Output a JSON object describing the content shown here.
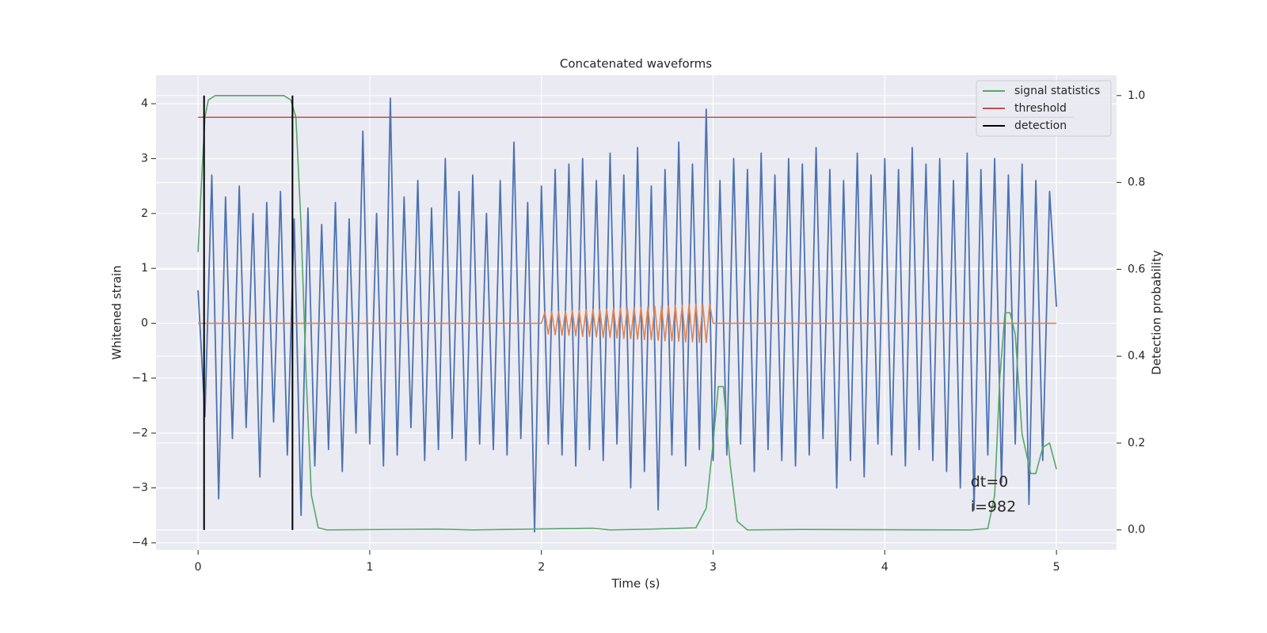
{
  "chart_data": {
    "type": "line",
    "title": "Concatenated waveforms",
    "x_label": "Time (s)",
    "y_label": "Whitened strain",
    "y2_label": "Detection probability",
    "xlim": [
      -0.245,
      5.35
    ],
    "ylim": [
      -4.13,
      4.52
    ],
    "y2lim": [
      -0.046,
      1.047
    ],
    "xticks": [
      0,
      1,
      2,
      3,
      4,
      5
    ],
    "yticks": [
      {
        "value": -4,
        "label": "−4"
      },
      {
        "value": -3,
        "label": "−3"
      },
      {
        "value": -2,
        "label": "−2"
      },
      {
        "value": -1,
        "label": "−1"
      },
      0,
      1,
      2,
      3,
      4
    ],
    "y2ticks": [
      {
        "value": 0,
        "label": "0.0"
      },
      {
        "value": 0.2,
        "label": "0.2"
      },
      {
        "value": 0.4,
        "label": "0.4"
      },
      {
        "value": 0.6,
        "label": "0.6"
      },
      {
        "value": 0.8,
        "label": "0.8"
      },
      {
        "value": 1,
        "label": "1.0"
      }
    ],
    "grid": true,
    "legend": "upper right",
    "annotations": [
      {
        "text": "dt=0",
        "x": 4.5,
        "y": -2.9
      },
      {
        "text": "i=982",
        "x": 4.5,
        "y": -3.35
      }
    ],
    "series": [
      {
        "color": "#4c72b0",
        "x": [
          0,
          0.04,
          0.08,
          0.12,
          0.16,
          0.2,
          0.24,
          0.28,
          0.32,
          0.36,
          0.4,
          0.44,
          0.48,
          0.52,
          0.56,
          0.6,
          0.64,
          0.68,
          0.72,
          0.76,
          0.8,
          0.84,
          0.88,
          0.92,
          0.96,
          1,
          1.04,
          1.08,
          1.12,
          1.16,
          1.2,
          1.24,
          1.28,
          1.32,
          1.36,
          1.4,
          1.44,
          1.48,
          1.52,
          1.56,
          1.6,
          1.64,
          1.68,
          1.72,
          1.76,
          1.8,
          1.84,
          1.88,
          1.92,
          1.96,
          2,
          2.04,
          2.08,
          2.12,
          2.16,
          2.2,
          2.24,
          2.28,
          2.32,
          2.36,
          2.4,
          2.44,
          2.48,
          2.52,
          2.56,
          2.6,
          2.64,
          2.68,
          2.72,
          2.76,
          2.8,
          2.84,
          2.88,
          2.92,
          2.96,
          3,
          3.04,
          3.08,
          3.12,
          3.16,
          3.2,
          3.24,
          3.28,
          3.32,
          3.36,
          3.4,
          3.44,
          3.48,
          3.52,
          3.56,
          3.6,
          3.64,
          3.68,
          3.72,
          3.76,
          3.8,
          3.84,
          3.88,
          3.92,
          3.96,
          4,
          4.04,
          4.08,
          4.12,
          4.16,
          4.2,
          4.24,
          4.28,
          4.32,
          4.36,
          4.4,
          4.44,
          4.48,
          4.52,
          4.56,
          4.6,
          4.64,
          4.68,
          4.72,
          4.76,
          4.8,
          4.84,
          4.88,
          4.92,
          4.96,
          5
        ],
        "values": [
          0.6,
          -1.7,
          2.7,
          -3.2,
          2.3,
          -2.1,
          2.5,
          -1.9,
          2.0,
          -2.8,
          2.2,
          -1.8,
          2.4,
          -2.4,
          1.9,
          -3.5,
          2.1,
          -2.6,
          1.8,
          -2.3,
          2.2,
          -2.7,
          1.9,
          -2.0,
          3.5,
          -2.2,
          2.0,
          -2.6,
          4.1,
          -2.4,
          2.3,
          -1.9,
          2.6,
          -2.5,
          2.1,
          -2.3,
          3.0,
          -2.1,
          2.4,
          -2.5,
          2.7,
          -2.2,
          2.0,
          -2.3,
          2.6,
          -2.4,
          3.3,
          -2.1,
          2.2,
          -3.8,
          2.5,
          -2.2,
          2.8,
          -2.4,
          2.9,
          -2.6,
          3.0,
          -2.3,
          2.6,
          -2.5,
          3.1,
          -2.2,
          2.7,
          -3.0,
          3.2,
          -2.7,
          2.5,
          -3.4,
          2.8,
          -2.4,
          3.3,
          -2.6,
          2.9,
          -2.3,
          3.9,
          -2.5,
          2.6,
          -2.4,
          3.0,
          -2.2,
          2.8,
          -2.7,
          3.1,
          -2.3,
          2.7,
          -2.5,
          3.0,
          -2.6,
          2.9,
          -2.4,
          3.2,
          -2.1,
          2.8,
          -3.0,
          2.6,
          -2.5,
          3.1,
          -2.8,
          2.7,
          -2.2,
          3.0,
          -2.4,
          2.8,
          -2.6,
          3.2,
          -2.3,
          2.9,
          -2.5,
          3.0,
          -2.7,
          2.6,
          -3.0,
          3.1,
          -3.4,
          2.8,
          -2.4,
          3.0,
          -2.9,
          2.7,
          -2.2,
          2.9,
          -3.3,
          2.6,
          -2.5,
          2.4,
          0.3
        ]
      },
      {
        "color": "#dd8452",
        "x": [
          0,
          2,
          2.02,
          2.04,
          2.06,
          2.08,
          2.1,
          2.12,
          2.14,
          2.16,
          2.18,
          2.2,
          2.22,
          2.24,
          2.26,
          2.28,
          2.3,
          2.32,
          2.34,
          2.36,
          2.38,
          2.4,
          2.42,
          2.44,
          2.46,
          2.48,
          2.5,
          2.52,
          2.54,
          2.56,
          2.58,
          2.6,
          2.62,
          2.64,
          2.66,
          2.68,
          2.7,
          2.72,
          2.74,
          2.76,
          2.78,
          2.8,
          2.82,
          2.84,
          2.86,
          2.88,
          2.9,
          2.92,
          2.94,
          2.96,
          2.98,
          3,
          5
        ],
        "values": [
          0,
          0,
          0.2,
          -0.2,
          0.21,
          -0.21,
          0.21,
          -0.22,
          0.22,
          -0.22,
          0.23,
          -0.23,
          0.23,
          -0.24,
          0.24,
          -0.24,
          0.25,
          -0.25,
          0.25,
          -0.26,
          0.26,
          -0.26,
          0.27,
          -0.27,
          0.27,
          -0.28,
          0.28,
          -0.28,
          0.29,
          -0.29,
          0.29,
          -0.3,
          0.3,
          -0.3,
          0.31,
          -0.31,
          0.31,
          -0.32,
          0.32,
          -0.32,
          0.33,
          -0.33,
          0.33,
          -0.34,
          0.34,
          -0.34,
          0.35,
          -0.35,
          0.35,
          -0.35,
          0.35,
          0,
          0
        ]
      },
      {
        "name": "signal statistics",
        "color": "#55a868",
        "axis": "y2",
        "x": [
          0,
          0.02,
          0.04,
          0.06,
          0.1,
          0.5,
          0.54,
          0.57,
          0.6,
          0.63,
          0.66,
          0.7,
          0.75,
          1.4,
          1.6,
          2.3,
          2.4,
          2.65,
          2.9,
          2.96,
          3.0,
          3.03,
          3.06,
          3.1,
          3.14,
          3.2,
          3.5,
          4.5,
          4.6,
          4.64,
          4.67,
          4.7,
          4.73,
          4.76,
          4.8,
          4.85,
          4.88,
          4.92,
          4.96,
          5.0
        ],
        "values": [
          0.64,
          0.8,
          0.95,
          0.99,
          1.0,
          1.0,
          0.99,
          0.95,
          0.7,
          0.35,
          0.08,
          0.005,
          0,
          0.002,
          0,
          0.004,
          0,
          0.002,
          0.005,
          0.05,
          0.2,
          0.33,
          0.33,
          0.15,
          0.02,
          0,
          0.001,
          0,
          0.003,
          0.08,
          0.35,
          0.5,
          0.5,
          0.45,
          0.22,
          0.13,
          0.13,
          0.19,
          0.2,
          0.14
        ]
      },
      {
        "name": "threshold",
        "color": "#c44e52",
        "axis": "y2",
        "x": [
          0,
          5.1
        ],
        "values": [
          0.95,
          0.95
        ]
      },
      {
        "name": "detection",
        "color": "#000000",
        "axis": "y2",
        "type": "vlines",
        "x": [
          0.035,
          0.55
        ],
        "values": [
          1,
          1
        ]
      }
    ]
  }
}
